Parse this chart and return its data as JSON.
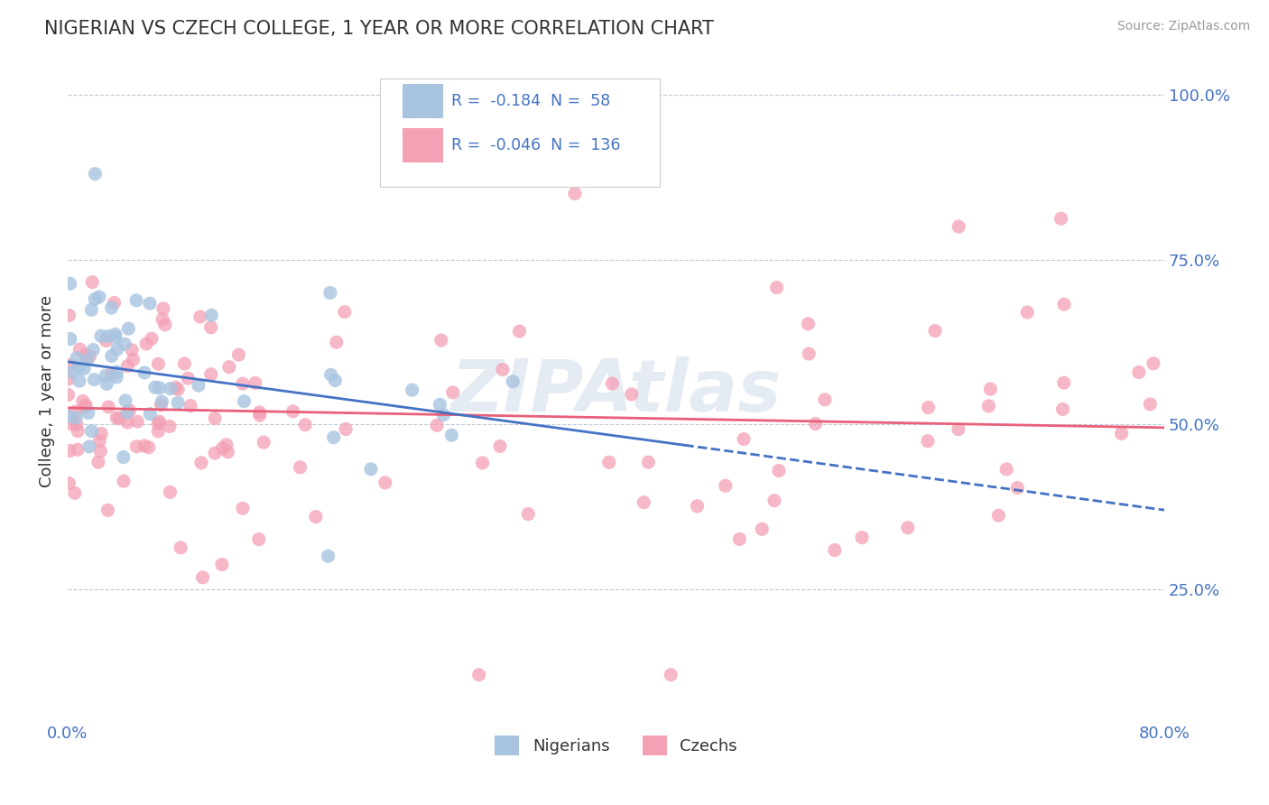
{
  "title": "NIGERIAN VS CZECH COLLEGE, 1 YEAR OR MORE CORRELATION CHART",
  "source": "Source: ZipAtlas.com",
  "ylabel": "College, 1 year or more",
  "xlim": [
    0.0,
    0.8
  ],
  "ylim": [
    0.05,
    1.05
  ],
  "y_tick_values_right": [
    0.25,
    0.5,
    0.75,
    1.0
  ],
  "y_tick_labels_right": [
    "25.0%",
    "50.0%",
    "75.0%",
    "100.0%"
  ],
  "nigerian_color": "#a8c4e0",
  "czech_color": "#f4a0b5",
  "nigerian_line_color": "#4472c4",
  "czech_line_color": "#e8607a",
  "R_nigerian": -0.184,
  "N_nigerian": 58,
  "R_czech": -0.046,
  "N_czech": 136,
  "watermark": "ZIPAtlas",
  "nigerian_line_start_x": 0.0,
  "nigerian_line_start_y": 0.595,
  "nigerian_line_end_x": 0.8,
  "nigerian_line_end_y": 0.37,
  "czech_line_start_x": 0.0,
  "czech_line_start_y": 0.525,
  "czech_line_end_x": 0.8,
  "czech_line_end_y": 0.495
}
